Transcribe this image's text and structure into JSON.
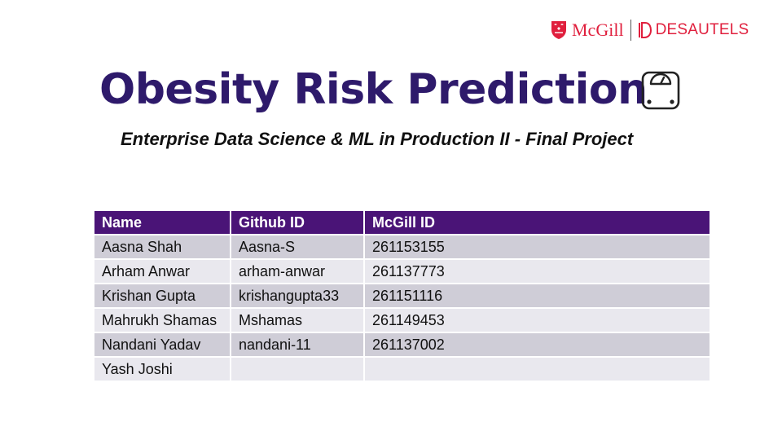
{
  "logo": {
    "mcgill": "McGill",
    "desautels": "DESAUTELS",
    "color": "#e01f3d"
  },
  "title": "Obesity Risk Prediction",
  "title_icon": "bathroom-scale-icon",
  "subtitle": "Enterprise Data Science & ML in Production II - Final Project",
  "table": {
    "headers": [
      "Name",
      "Github ID",
      "McGill ID"
    ],
    "rows": [
      [
        "Aasna Shah",
        "Aasna-S",
        "261153155"
      ],
      [
        "Arham Anwar",
        "arham-anwar",
        "261137773"
      ],
      [
        "Krishan Gupta",
        "krishangupta33",
        "261151116"
      ],
      [
        "Mahrukh Shamas",
        "Mshamas",
        "261149453"
      ],
      [
        "Nandani Yadav",
        "nandani-11",
        "261137002"
      ],
      [
        "Yash Joshi",
        "",
        ""
      ]
    ],
    "header_color": "#4a1477"
  },
  "colors": {
    "title": "#2e1a6b"
  }
}
